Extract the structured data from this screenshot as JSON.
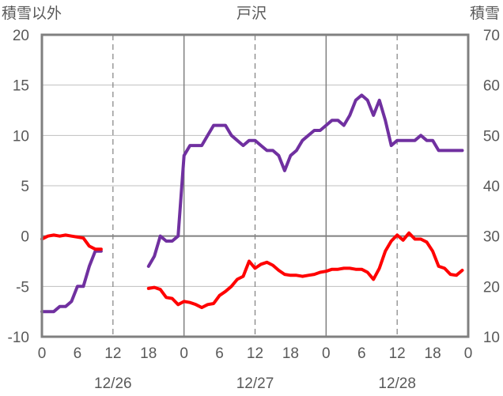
{
  "chart_data": {
    "type": "line",
    "title": "戸沢",
    "left_axis_label": "積雪以外",
    "right_axis_label": "積雪",
    "left_ylim": [
      -10,
      20
    ],
    "left_yticks": [
      20,
      15,
      10,
      5,
      0,
      -5,
      -10
    ],
    "right_ylim": [
      10,
      70
    ],
    "right_yticks": [
      70,
      60,
      50,
      40,
      30,
      20,
      10
    ],
    "x_ticklabels": [
      "0",
      "6",
      "12",
      "18",
      "0",
      "6",
      "12",
      "18",
      "0",
      "6",
      "12",
      "18",
      "0"
    ],
    "date_labels": [
      "12/26",
      "12/27",
      "12/28"
    ],
    "grid": "dashed verticals at 12h, solid at 0h and the zero line",
    "series": [
      {
        "axis": "right",
        "color": "#7030a0",
        "segments": [
          [
            [
              0,
              15
            ],
            [
              1,
              15
            ],
            [
              2,
              15
            ],
            [
              3,
              16
            ],
            [
              4,
              16
            ],
            [
              5,
              17
            ],
            [
              6,
              20
            ],
            [
              7,
              20
            ],
            [
              8,
              24
            ],
            [
              9,
              27
            ],
            [
              10,
              27
            ]
          ],
          [
            [
              18,
              24
            ],
            [
              19,
              26
            ],
            [
              20,
              30
            ],
            [
              21,
              29
            ],
            [
              22,
              29
            ],
            [
              23,
              30
            ],
            [
              24,
              46
            ],
            [
              25,
              48
            ],
            [
              26,
              48
            ],
            [
              27,
              48
            ],
            [
              28,
              50
            ],
            [
              29,
              52
            ],
            [
              30,
              52
            ],
            [
              31,
              52
            ],
            [
              32,
              50
            ],
            [
              33,
              49
            ],
            [
              34,
              48
            ],
            [
              35,
              49
            ],
            [
              36,
              49
            ],
            [
              37,
              48
            ],
            [
              38,
              47
            ],
            [
              39,
              47
            ],
            [
              40,
              46
            ],
            [
              41,
              43
            ],
            [
              42,
              46
            ],
            [
              43,
              47
            ],
            [
              44,
              49
            ],
            [
              45,
              50
            ],
            [
              46,
              51
            ],
            [
              47,
              51
            ],
            [
              48,
              52
            ],
            [
              49,
              53
            ],
            [
              50,
              53
            ],
            [
              51,
              52
            ],
            [
              52,
              54
            ],
            [
              53,
              57
            ],
            [
              54,
              58
            ],
            [
              55,
              57
            ],
            [
              56,
              54
            ],
            [
              57,
              57
            ],
            [
              58,
              53
            ],
            [
              59,
              48
            ],
            [
              60,
              49
            ],
            [
              61,
              49
            ],
            [
              62,
              49
            ],
            [
              63,
              49
            ],
            [
              64,
              50
            ],
            [
              65,
              49
            ],
            [
              66,
              49
            ],
            [
              67,
              47
            ],
            [
              68,
              47
            ],
            [
              69,
              47
            ],
            [
              70,
              47
            ],
            [
              71,
              47
            ]
          ]
        ]
      },
      {
        "axis": "left",
        "color": "#ff0000",
        "segments": [
          [
            [
              0,
              -0.3
            ],
            [
              1,
              0
            ],
            [
              2,
              0.1
            ],
            [
              3,
              0
            ],
            [
              4,
              0.1
            ],
            [
              5,
              0
            ],
            [
              6,
              -0.1
            ],
            [
              7,
              -0.2
            ],
            [
              8,
              -1
            ],
            [
              9,
              -1.3
            ],
            [
              10,
              -1.3
            ]
          ],
          [
            [
              18,
              -5.2
            ],
            [
              19,
              -5.1
            ],
            [
              20,
              -5.3
            ],
            [
              21,
              -6.1
            ],
            [
              22,
              -6.2
            ],
            [
              23,
              -6.8
            ],
            [
              24,
              -6.5
            ],
            [
              25,
              -6.6
            ],
            [
              26,
              -6.8
            ],
            [
              27,
              -7.1
            ],
            [
              28,
              -6.8
            ],
            [
              29,
              -6.7
            ],
            [
              30,
              -5.9
            ],
            [
              31,
              -5.5
            ],
            [
              32,
              -5
            ],
            [
              33,
              -4.3
            ],
            [
              34,
              -4.0
            ],
            [
              35,
              -2.5
            ],
            [
              36,
              -3.2
            ],
            [
              37,
              -2.8
            ],
            [
              38,
              -2.6
            ],
            [
              39,
              -2.9
            ],
            [
              40,
              -3.4
            ],
            [
              41,
              -3.8
            ],
            [
              42,
              -3.9
            ],
            [
              43,
              -3.9
            ],
            [
              44,
              -4.0
            ],
            [
              45,
              -3.9
            ],
            [
              46,
              -3.8
            ],
            [
              47,
              -3.6
            ],
            [
              48,
              -3.5
            ],
            [
              49,
              -3.3
            ],
            [
              50,
              -3.3
            ],
            [
              51,
              -3.2
            ],
            [
              52,
              -3.2
            ],
            [
              53,
              -3.3
            ],
            [
              54,
              -3.3
            ],
            [
              55,
              -3.6
            ],
            [
              56,
              -4.3
            ],
            [
              57,
              -3.2
            ],
            [
              58,
              -1.5
            ],
            [
              59,
              -0.5
            ],
            [
              60,
              0.1
            ],
            [
              61,
              -0.4
            ],
            [
              62,
              0.3
            ],
            [
              63,
              -0.3
            ],
            [
              64,
              -0.3
            ],
            [
              65,
              -0.6
            ],
            [
              66,
              -1.5
            ],
            [
              67,
              -3
            ],
            [
              68,
              -3.2
            ],
            [
              69,
              -3.8
            ],
            [
              70,
              -3.9
            ],
            [
              71,
              -3.4
            ]
          ]
        ]
      }
    ]
  }
}
